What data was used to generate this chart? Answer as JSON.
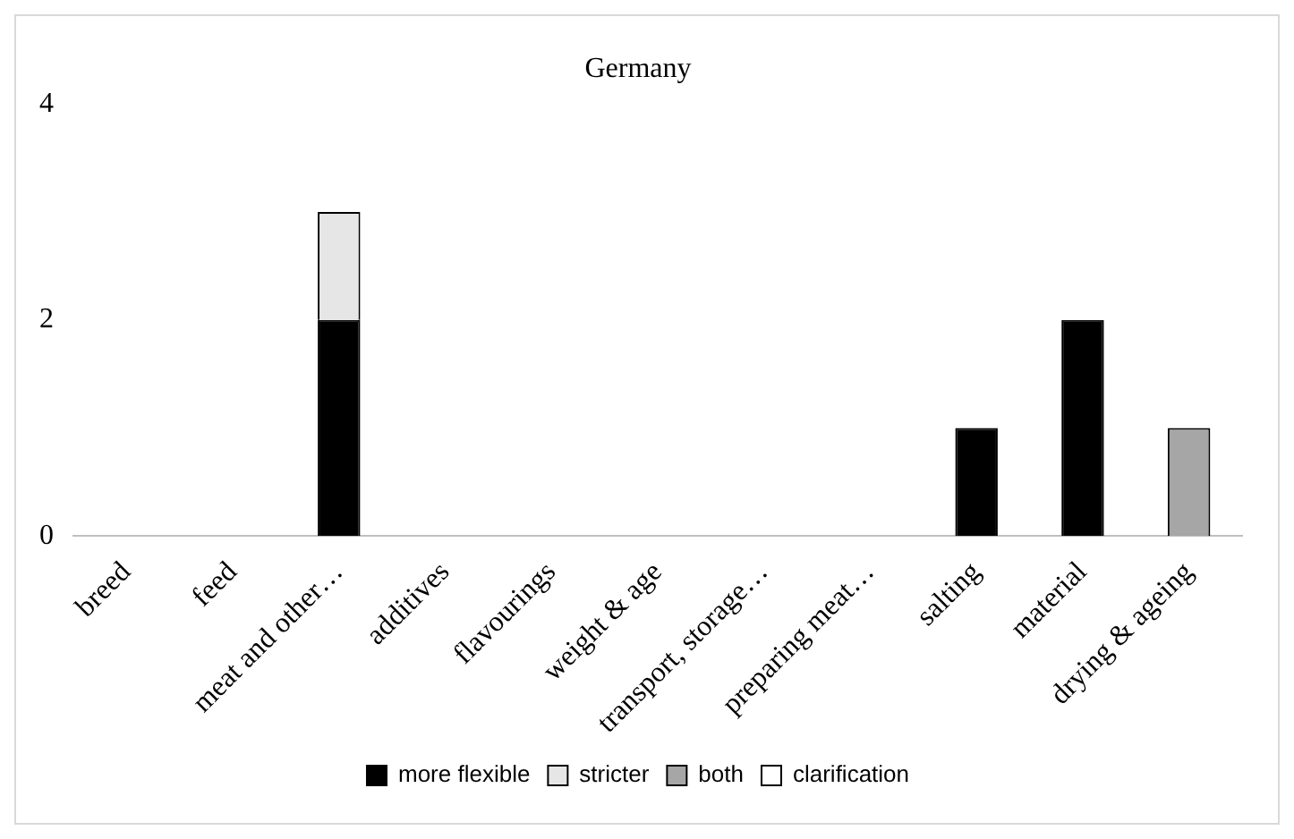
{
  "chart_data": {
    "type": "bar",
    "title": "Germany",
    "stacked": true,
    "categories": [
      "breed",
      "feed",
      "meat and other…",
      "additives",
      "flavourings",
      "weight & age",
      "transport, storage…",
      "preparing meat…",
      "salting",
      "material",
      "drying & ageing"
    ],
    "series": [
      {
        "name": "more flexible",
        "color": "#000000",
        "values": [
          0,
          0,
          2,
          0,
          0,
          0,
          0,
          0,
          1,
          2,
          0
        ]
      },
      {
        "name": "stricter",
        "color": "#e6e6e6",
        "values": [
          0,
          0,
          1,
          0,
          0,
          0,
          0,
          0,
          0,
          0,
          0
        ]
      },
      {
        "name": "both",
        "color": "#a6a6a6",
        "values": [
          0,
          0,
          0,
          0,
          0,
          0,
          0,
          0,
          0,
          0,
          1
        ]
      },
      {
        "name": "clarification",
        "color": "#ffffff",
        "values": [
          0,
          0,
          0,
          0,
          0,
          0,
          0,
          0,
          0,
          0,
          0
        ]
      }
    ],
    "ylim": [
      0,
      4
    ],
    "yticks": [
      0,
      2,
      4
    ],
    "grid": false,
    "legend": "bottom"
  }
}
